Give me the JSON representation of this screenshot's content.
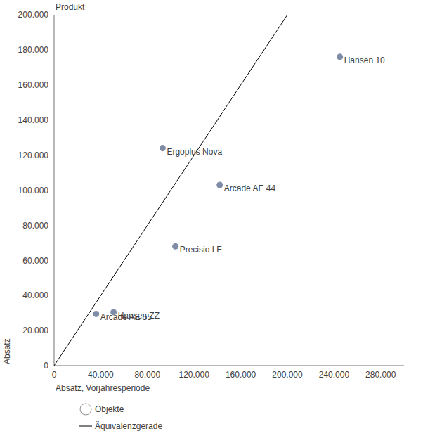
{
  "chart_data": {
    "type": "scatter",
    "title": "Produkt",
    "x_label": "Absatz, Vorjahresperiode",
    "y_label": "Absatz",
    "series": [
      {
        "name": "Objekte",
        "type": "scatter",
        "color": "#7f8ca8",
        "marker": "circle",
        "labels": [
          "Hansen 10",
          "Ergoplus Nova",
          "Arcade AE 44",
          "Precisio LF",
          "Hansen ZZ",
          "Arcade AE 55"
        ],
        "x": [
          245000,
          93000,
          142000,
          104000,
          51000,
          36000
        ],
        "values": [
          176000,
          124000,
          103000,
          68000,
          30500,
          29500
        ]
      },
      {
        "name": "Äquivalenzgerade",
        "type": "line",
        "color": "#000000",
        "line_style": "solid",
        "x": [
          0,
          200000
        ],
        "values": [
          0,
          200000
        ]
      }
    ],
    "xlim": [
      0,
      300000
    ],
    "xticks": [
      0,
      {
        "value": 40000,
        "label": "40.000"
      },
      {
        "value": 80000,
        "label": "80.000"
      },
      {
        "value": 120000,
        "label": "120.000"
      },
      {
        "value": 160000,
        "label": "160.000"
      },
      {
        "value": 200000,
        "label": "200.000"
      },
      {
        "value": 240000,
        "label": "240.000"
      },
      {
        "value": 280000,
        "label": "280.000"
      }
    ],
    "ylim": [
      0,
      200000
    ],
    "yticks": [
      0,
      {
        "value": 20000,
        "label": "20.000"
      },
      {
        "value": 40000,
        "label": "40.000"
      },
      {
        "value": 60000,
        "label": "60.000"
      },
      {
        "value": 80000,
        "label": "80.000"
      },
      {
        "value": 100000,
        "label": "100.000"
      },
      {
        "value": 120000,
        "label": "120.000"
      },
      {
        "value": 140000,
        "label": "140.000"
      },
      {
        "value": 160000,
        "label": "160.000"
      },
      {
        "value": 180000,
        "label": "180.000"
      },
      {
        "value": 200000,
        "label": "200.000"
      }
    ],
    "grid": false,
    "legend": "bottom"
  }
}
